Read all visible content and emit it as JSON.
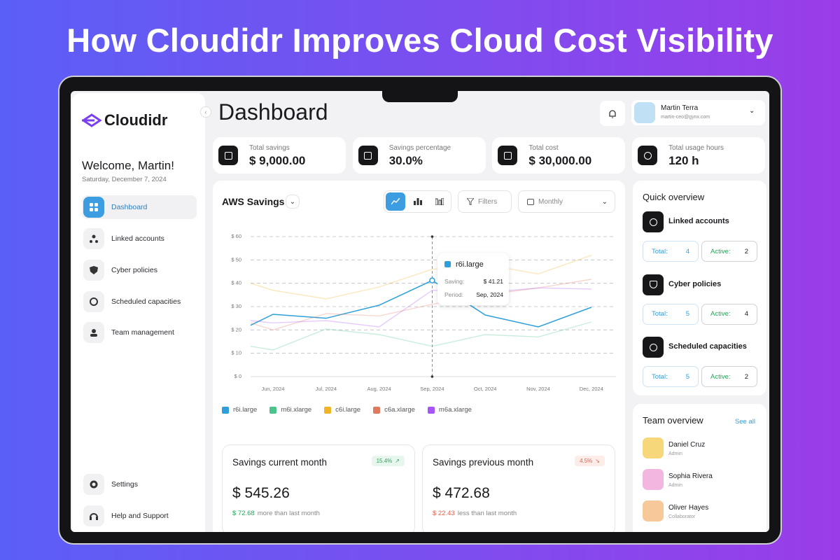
{
  "headline": "How Cloudidr Improves Cloud Cost Visibility",
  "sidebar": {
    "logo": "Cloudidr",
    "welcome": "Welcome, Martin!",
    "date": "Saturday, December 7, 2024",
    "nav": [
      "Dashboard",
      "Linked accounts",
      "Cyber policies",
      "Scheduled capacities",
      "Team management"
    ],
    "footer_nav": [
      "Settings",
      "Help and Support"
    ]
  },
  "header": {
    "title": "Dashboard",
    "user_name": "Martin Terra",
    "user_email": "martin-ceo@gynx.com"
  },
  "stats": [
    {
      "label": "Total savings",
      "value": "$ 9,000.00"
    },
    {
      "label": "Savings percentage",
      "value": "30.0%"
    },
    {
      "label": "Total cost",
      "value": "$ 30,000.00"
    },
    {
      "label": "Total usage hours",
      "value": "120 h"
    }
  ],
  "chart_controls": {
    "filters": "Filters",
    "period": "Monthly"
  },
  "chart_data": {
    "type": "line",
    "title": "AWS Savings",
    "categories": [
      null,
      "Jun, 2024",
      "Jul, 2024",
      "Aug, 2024",
      "Sep, 2024",
      "Oct, 2024",
      "Nov, 2024",
      "Dec, 2024"
    ],
    "series": [
      {
        "name": "r6i.large",
        "color": "#2e9fdb",
        "values": [
          22,
          26.7,
          25,
          30.6,
          41.21,
          26.4,
          21.3,
          29.7
        ]
      },
      {
        "name": "m6i.xlarge",
        "color": "#4cc38a",
        "values": [
          13,
          11.4,
          20.4,
          18,
          13,
          18,
          17,
          23.4
        ]
      },
      {
        "name": "c6i.large",
        "color": "#f0b429",
        "values": [
          40,
          37,
          33.3,
          38.4,
          46,
          48,
          44,
          52
        ]
      },
      {
        "name": "c6a.xlarge",
        "color": "#e07a5f",
        "values": [
          23,
          20,
          27,
          26,
          31,
          35,
          38,
          41.7
        ]
      },
      {
        "name": "m6a.xlarge",
        "color": "#a855f7",
        "values": [
          24,
          23,
          24,
          21.3,
          37,
          36,
          38,
          37.5
        ]
      }
    ],
    "ylim": [
      0,
      60
    ],
    "yticks": [
      {
        "value": 0,
        "label": "$ 0"
      },
      {
        "value": 10,
        "label": "$ 10"
      },
      {
        "value": 20,
        "label": "$ 20"
      },
      {
        "value": 30,
        "label": "$ 30"
      },
      {
        "value": 40,
        "label": "$ 40"
      },
      {
        "value": 50,
        "label": "$ 50"
      },
      {
        "value": 60,
        "label": "$ 60"
      }
    ],
    "grid": true,
    "tooltip": {
      "saving_label": "Saving:",
      "saving": "$ 41.21",
      "period_label": "Period:"
    }
  },
  "savings_cards": [
    {
      "title": "Savings current month",
      "change": "15.4%",
      "amount": "$ 545.26",
      "delta": "$ 72.68",
      "note": "more than last month"
    },
    {
      "title": "Savings previous month",
      "change": "4.5%",
      "amount": "$ 472.68",
      "delta": "$ 22.43",
      "note": "less than last month"
    }
  ],
  "quick_overview": {
    "title": "Quick overview",
    "total_label": "Total:",
    "active_label": "Active:",
    "items": [
      {
        "name": "Linked accounts",
        "total": 4,
        "active": 2
      },
      {
        "name": "Cyber policies",
        "total": 5,
        "active": 4
      },
      {
        "name": "Scheduled capacities",
        "total": 5,
        "active": 2
      }
    ]
  },
  "team_overview": {
    "title": "Team overview",
    "see_all": "See all",
    "members": [
      {
        "name": "Daniel Cruz",
        "role": "Admin"
      },
      {
        "name": "Sophia Rivera",
        "role": "Admin"
      },
      {
        "name": "Oliver Hayes",
        "role": "Collaborator"
      }
    ]
  }
}
